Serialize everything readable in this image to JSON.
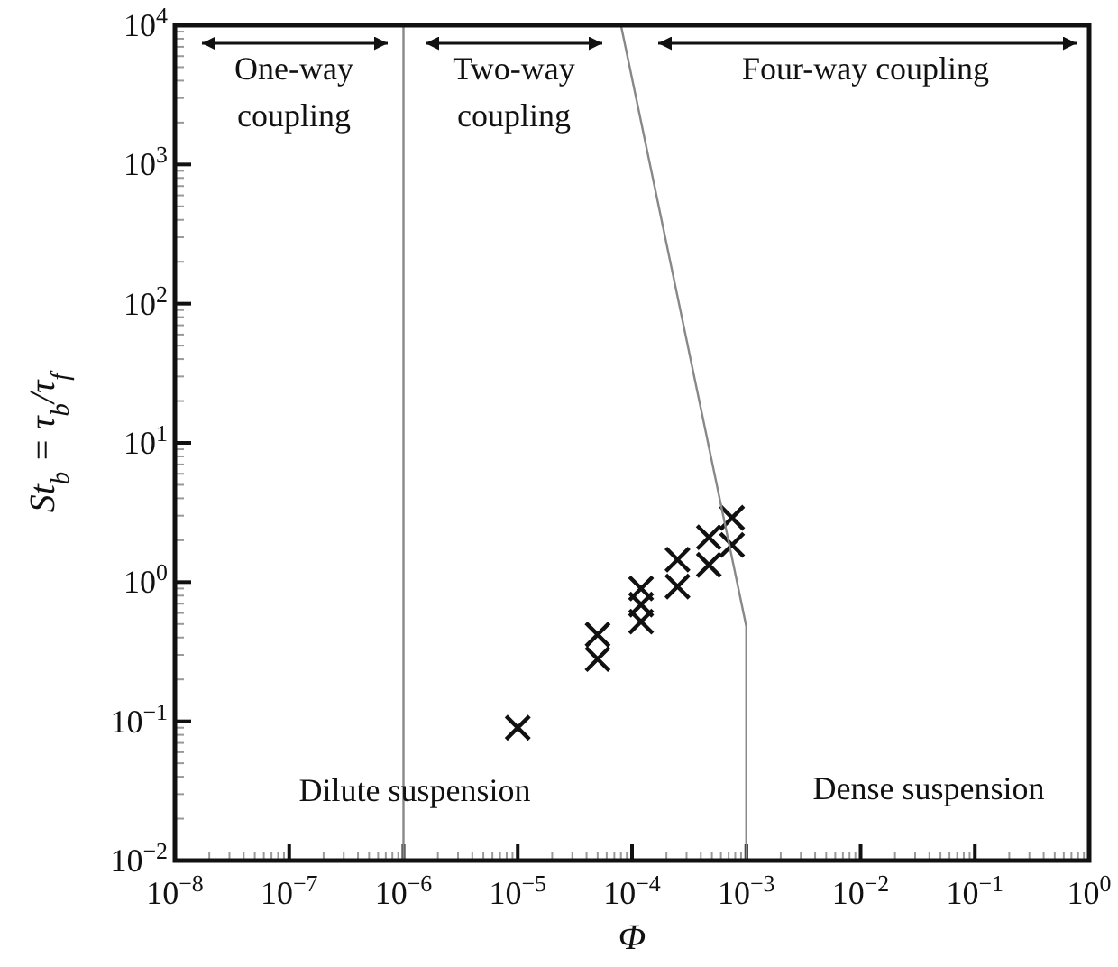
{
  "chart_data": {
    "type": "scatter",
    "xlabel": "Φ",
    "ylabel": "St$_{b}$ = τ$_{b}$/τ$_{f}$",
    "log": "xy",
    "grid": false,
    "marker": "cross",
    "xlim": [
      1e-08,
      1
    ],
    "ylim": [
      0.01,
      10000
    ],
    "xticks": [
      {
        "value": 1e-08,
        "label": "10$^{−8}$"
      },
      {
        "value": 1e-07,
        "label": "10$^{−7}$"
      },
      {
        "value": 1e-06,
        "label": "10$^{−6}$"
      },
      {
        "value": 1e-05,
        "label": "10$^{−5}$"
      },
      {
        "value": 0.0001,
        "label": "10$^{−4}$"
      },
      {
        "value": 0.001,
        "label": "10$^{−3}$"
      },
      {
        "value": 0.01,
        "label": "10$^{−2}$"
      },
      {
        "value": 0.1,
        "label": "10$^{−1}$"
      },
      {
        "value": 1,
        "label": "10$^{0}$"
      }
    ],
    "yticks": [
      {
        "value": 0.01,
        "label": "10$^{−2}$"
      },
      {
        "value": 0.1,
        "label": "10$^{−1}$"
      },
      {
        "value": 1,
        "label": "10$^{0}$"
      },
      {
        "value": 10,
        "label": "10$^{1}$"
      },
      {
        "value": 100,
        "label": "10$^{2}$"
      },
      {
        "value": 1000,
        "label": "10$^{3}$"
      },
      {
        "value": 10000,
        "label": "10$^{4}$"
      }
    ],
    "ref_lines": [
      {
        "axis": "x",
        "value": 1e-06,
        "color": "#888888"
      }
    ],
    "series": [
      {
        "color": "#111111",
        "x": [
          1e-05,
          5e-05,
          5e-05,
          0.00012,
          0.00012,
          0.00012,
          0.00025,
          0.00025,
          0.00047,
          0.00047,
          0.00075,
          0.00075
        ],
        "values": [
          0.09,
          0.42,
          0.28,
          0.9,
          0.69,
          0.52,
          1.45,
          0.93,
          2.1,
          1.33,
          2.9,
          1.85
        ]
      },
      {
        "type": "line",
        "color": "#888888",
        "marker": "none",
        "x": [
          8e-05,
          0.001,
          0.001
        ],
        "values": [
          10000,
          0.48,
          0.01
        ]
      }
    ],
    "annotations": [
      "One-way coupling",
      "Two-way coupling",
      "Four-way coupling",
      "Dilute suspension",
      "Dense suspension"
    ]
  }
}
